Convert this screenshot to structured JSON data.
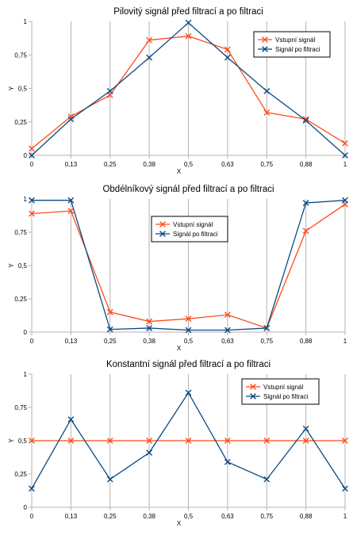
{
  "chart_data": [
    {
      "type": "line",
      "title": "Pilovitý signál před filtrací a po filtraci",
      "xlabel": "X",
      "ylabel": "Y",
      "x": [
        "0",
        "0,13",
        "0,25",
        "0,38",
        "0,5",
        "0,63",
        "0,75",
        "0,88",
        "1"
      ],
      "ylim": [
        0,
        1
      ],
      "yticks": [
        "0",
        "0,25",
        "0,5",
        "0,75",
        "1"
      ],
      "legend_position": "top-right",
      "series": [
        {
          "name": "Vstupní signál",
          "color": "#ff4a1a",
          "values": [
            0.05,
            0.29,
            0.45,
            0.86,
            0.89,
            0.79,
            0.32,
            0.27,
            0.09
          ]
        },
        {
          "name": "Signál po filtraci",
          "color": "#0b4a82",
          "values": [
            0.0,
            0.27,
            0.48,
            0.73,
            0.99,
            0.73,
            0.48,
            0.26,
            0.0
          ]
        }
      ]
    },
    {
      "type": "line",
      "title": "Obdélníkový signál před filtrací a po filtraci",
      "xlabel": "X",
      "ylabel": "Y",
      "x": [
        "0",
        "0,13",
        "0,25",
        "0,38",
        "0,5",
        "0,63",
        "0,75",
        "0,88",
        "1"
      ],
      "ylim": [
        0,
        1
      ],
      "yticks": [
        "0",
        "0,25",
        "0,5",
        "0,75",
        "1"
      ],
      "legend_position": "center",
      "series": [
        {
          "name": "Vstupní signál",
          "color": "#ff4a1a",
          "values": [
            0.89,
            0.91,
            0.15,
            0.08,
            0.1,
            0.13,
            0.03,
            0.76,
            0.96
          ]
        },
        {
          "name": "Signál po filtraci",
          "color": "#0b4a82",
          "values": [
            0.99,
            0.99,
            0.02,
            0.03,
            0.015,
            0.015,
            0.03,
            0.97,
            0.99
          ]
        }
      ]
    },
    {
      "type": "line",
      "title": "Konstantní signál před filtrací a po filtraci",
      "xlabel": "X",
      "ylabel": "Y",
      "x": [
        "0",
        "0,13",
        "0,25",
        "0,38",
        "0,5",
        "0,63",
        "0,75",
        "0,88",
        "1"
      ],
      "ylim": [
        0,
        1
      ],
      "yticks": [
        "0",
        "0,25",
        "0,5",
        "0,75",
        "1"
      ],
      "legend_position": "top-right",
      "series": [
        {
          "name": "Vstupní signál",
          "color": "#ff4a1a",
          "values": [
            0.5,
            0.5,
            0.5,
            0.5,
            0.5,
            0.5,
            0.5,
            0.5,
            0.5
          ]
        },
        {
          "name": "Signál po filtraci",
          "color": "#0b4a82",
          "values": [
            0.14,
            0.66,
            0.21,
            0.41,
            0.86,
            0.34,
            0.21,
            0.59,
            0.14
          ]
        }
      ]
    }
  ]
}
